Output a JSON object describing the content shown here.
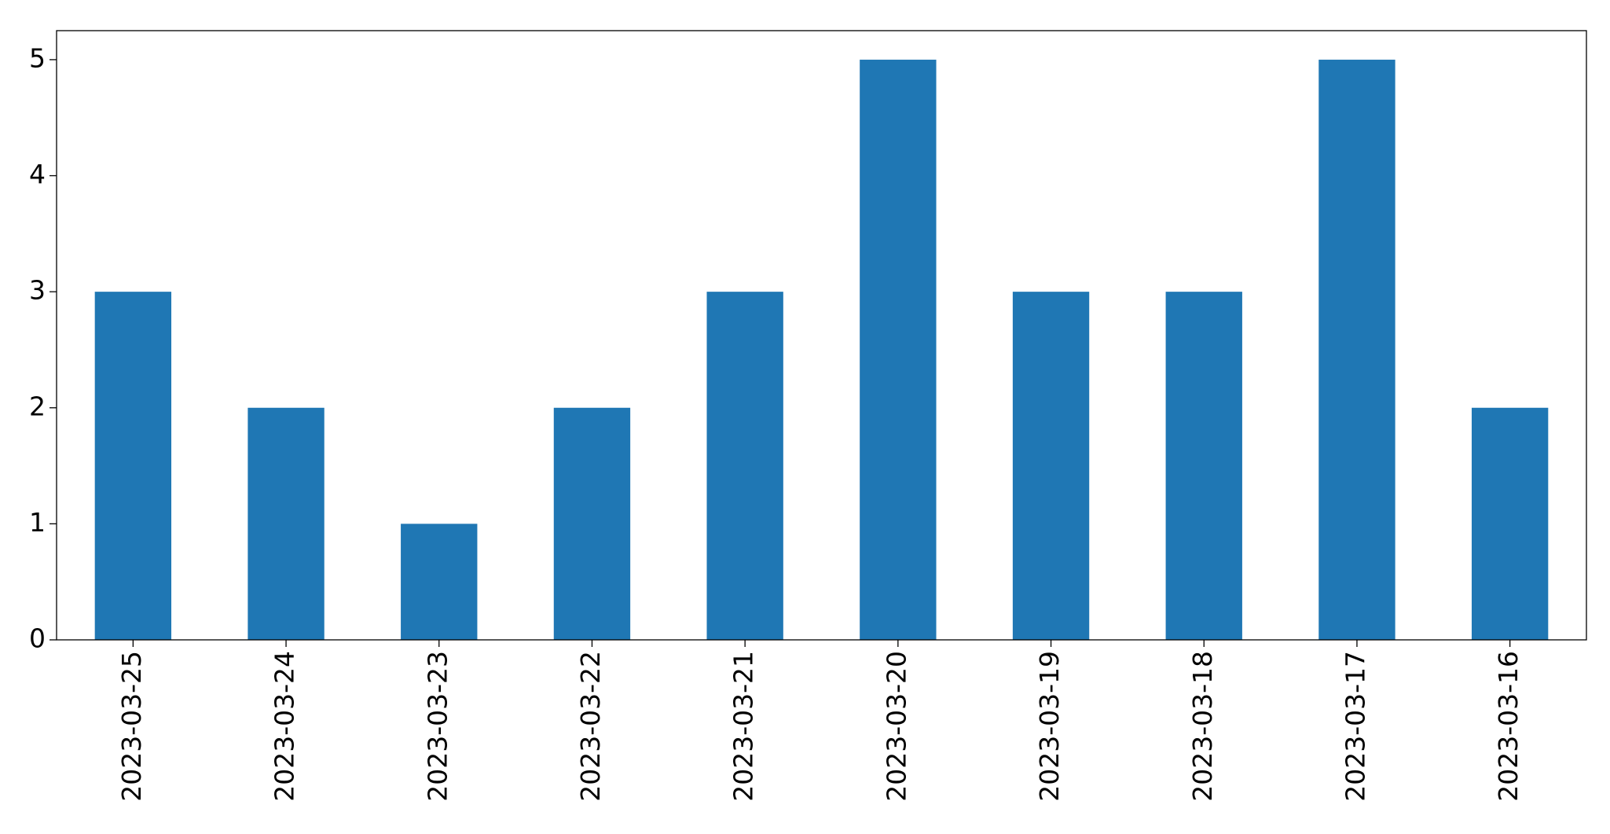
{
  "chart_data": {
    "type": "bar",
    "categories": [
      "2023-03-25",
      "2023-03-24",
      "2023-03-23",
      "2023-03-22",
      "2023-03-21",
      "2023-03-20",
      "2023-03-19",
      "2023-03-18",
      "2023-03-17",
      "2023-03-16"
    ],
    "values": [
      3,
      2,
      1,
      2,
      3,
      5,
      3,
      3,
      5,
      2
    ],
    "color": "#1f77b4",
    "ylim": [
      0,
      5.25
    ],
    "yticks": [
      0,
      1,
      2,
      3,
      4,
      5
    ],
    "grid": false
  }
}
